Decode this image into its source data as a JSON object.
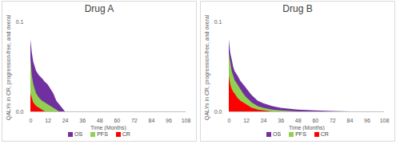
{
  "chart_data": [
    {
      "type": "area",
      "title": "Drug A",
      "x_label": "Time (Months)",
      "y_label": "QALYs in CR, progression-free, and overall",
      "x": [
        0,
        1,
        2,
        3,
        4,
        6,
        8,
        10,
        12,
        14,
        16,
        18,
        20,
        22,
        24,
        108
      ],
      "series": [
        {
          "name": "OS",
          "color": "#7030a0",
          "values": [
            0.08,
            0.065,
            0.055,
            0.05,
            0.045,
            0.04,
            0.037,
            0.033,
            0.03,
            0.025,
            0.02,
            0.012,
            0.008,
            0.004,
            0,
            0
          ]
        },
        {
          "name": "PFS",
          "color": "#92d050",
          "values": [
            0.06,
            0.04,
            0.03,
            0.025,
            0.02,
            0.015,
            0.012,
            0.01,
            0.008,
            0.006,
            0.004,
            0.002,
            0,
            0,
            0,
            0
          ]
        },
        {
          "name": "CR",
          "color": "#ff0000",
          "values": [
            0.02,
            0.015,
            0.01,
            0.008,
            0.006,
            0.004,
            0.002,
            0,
            0,
            0,
            0,
            0,
            0,
            0,
            0,
            0
          ]
        }
      ],
      "xlim": [
        0,
        108
      ],
      "xticks": [
        0,
        12,
        24,
        36,
        48,
        60,
        72,
        84,
        96,
        108
      ],
      "ylim": [
        0,
        0.1
      ],
      "yticks": [
        {
          "value": 0,
          "label": "0.0"
        },
        0.1
      ],
      "stacked": false,
      "grid": false,
      "legend": "bottom"
    },
    {
      "type": "area",
      "title": "Drug B",
      "x_label": "Time (Months)",
      "y_label": "QALYs in CR, progression-free, and overall",
      "x": [
        0,
        1,
        2,
        3,
        4,
        6,
        8,
        10,
        12,
        14,
        16,
        18,
        20,
        24,
        30,
        36,
        48,
        60,
        72,
        84,
        108
      ],
      "series": [
        {
          "name": "OS",
          "color": "#7030a0",
          "values": [
            0.08,
            0.065,
            0.058,
            0.05,
            0.045,
            0.04,
            0.034,
            0.03,
            0.026,
            0.022,
            0.018,
            0.015,
            0.012,
            0.009,
            0.006,
            0.004,
            0.002,
            0.001,
            0.0005,
            0,
            0
          ]
        },
        {
          "name": "PFS",
          "color": "#92d050",
          "values": [
            0.065,
            0.055,
            0.045,
            0.04,
            0.035,
            0.03,
            0.025,
            0.02,
            0.016,
            0.013,
            0.01,
            0.008,
            0.006,
            0.004,
            0.002,
            0.001,
            0,
            0,
            0,
            0,
            0
          ]
        },
        {
          "name": "CR",
          "color": "#ff0000",
          "values": [
            0.04,
            0.03,
            0.025,
            0.022,
            0.02,
            0.015,
            0.012,
            0.01,
            0.008,
            0.006,
            0.004,
            0.003,
            0.002,
            0.001,
            0,
            0,
            0,
            0,
            0,
            0,
            0
          ]
        }
      ],
      "xlim": [
        0,
        108
      ],
      "xticks": [
        0,
        12,
        24,
        36,
        48,
        60,
        72,
        84,
        96,
        108
      ],
      "ylim": [
        0,
        0.1
      ],
      "yticks": [
        {
          "value": 0,
          "label": "0.0"
        },
        0.1
      ],
      "stacked": false,
      "grid": false,
      "legend": "bottom"
    }
  ]
}
